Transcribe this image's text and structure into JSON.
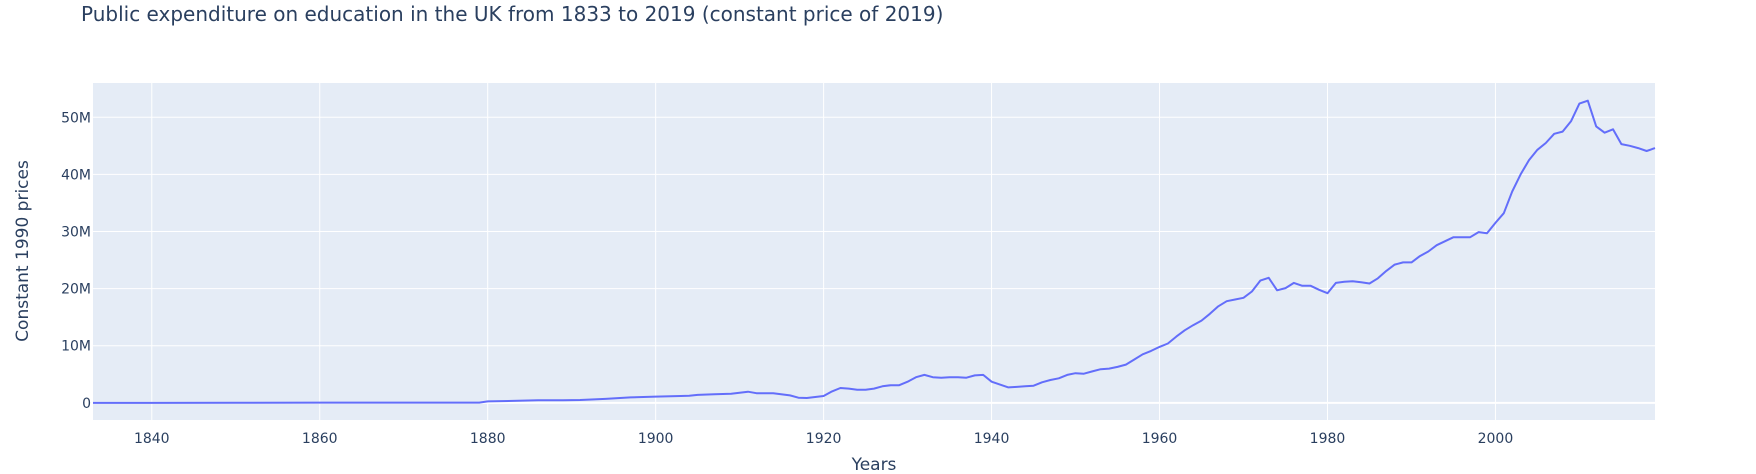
{
  "chart_data": {
    "type": "line",
    "title": "Public expenditure on education in the UK from 1833 to 2019 (constant price of 2019)",
    "xlabel": "Years",
    "ylabel": "Constant 1990  prices",
    "xlim": [
      1833,
      2019
    ],
    "ylim": [
      -3000000,
      56000000
    ],
    "grid": true,
    "x_ticks": [
      1840,
      1860,
      1880,
      1900,
      1920,
      1940,
      1960,
      1980,
      2000
    ],
    "x_tick_labels": [
      "1840",
      "1860",
      "1880",
      "1900",
      "1920",
      "1940",
      "1960",
      "1980",
      "2000"
    ],
    "y_ticks": [
      0,
      10000000,
      20000000,
      30000000,
      40000000,
      50000000
    ],
    "y_tick_labels": [
      "0",
      "10M",
      "20M",
      "30M",
      "40M",
      "50M"
    ],
    "colors": {
      "line": "#636efa",
      "plot_bg": "#e5ecf6",
      "grid": "#ffffff",
      "text": "#2a3f5f"
    },
    "series": [
      {
        "x": [
          1833,
          1840,
          1850,
          1860,
          1870,
          1879,
          1880,
          1883,
          1886,
          1889,
          1891,
          1894,
          1897,
          1900,
          1903,
          1904,
          1905,
          1907,
          1909,
          1911,
          1912,
          1914,
          1916,
          1917,
          1918,
          1920,
          1921,
          1922,
          1923,
          1924,
          1925,
          1926,
          1927,
          1928,
          1929,
          1930,
          1931,
          1932,
          1933,
          1934,
          1935,
          1936,
          1937,
          1938,
          1939,
          1940,
          1941,
          1942,
          1943,
          1944,
          1945,
          1946,
          1947,
          1948,
          1949,
          1950,
          1951,
          1952,
          1953,
          1954,
          1955,
          1956,
          1957,
          1958,
          1959,
          1960,
          1961,
          1962,
          1963,
          1964,
          1965,
          1966,
          1967,
          1968,
          1969,
          1970,
          1971,
          1972,
          1973,
          1974,
          1975,
          1976,
          1977,
          1978,
          1979,
          1980,
          1981,
          1982,
          1983,
          1984,
          1985,
          1986,
          1987,
          1988,
          1989,
          1990,
          1991,
          1992,
          1993,
          1994,
          1995,
          1996,
          1997,
          1998,
          1999,
          2000,
          2001,
          2002,
          2003,
          2004,
          2005,
          2006,
          2007,
          2008,
          2009,
          2010,
          2011,
          2012,
          2013,
          2014,
          2015,
          2016,
          2017,
          2018,
          2019
        ],
        "y": [
          0,
          0,
          20000,
          50000,
          50000,
          50000,
          250000,
          350000,
          450000,
          450000,
          500000,
          700000,
          950000,
          1100000,
          1200000,
          1250000,
          1400000,
          1500000,
          1600000,
          1950000,
          1700000,
          1700000,
          1300000,
          900000,
          850000,
          1200000,
          2000000,
          2600000,
          2500000,
          2300000,
          2300000,
          2500000,
          2900000,
          3100000,
          3100000,
          3700000,
          4500000,
          4900000,
          4500000,
          4400000,
          4500000,
          4500000,
          4400000,
          4800000,
          4900000,
          3700000,
          3200000,
          2700000,
          2800000,
          2900000,
          3000000,
          3600000,
          4000000,
          4300000,
          4900000,
          5200000,
          5100000,
          5500000,
          5900000,
          6000000,
          6300000,
          6700000,
          7600000,
          8500000,
          9100000,
          9800000,
          10400000,
          11600000,
          12700000,
          13600000,
          14400000,
          15600000,
          16900000,
          17800000,
          18100000,
          18400000,
          19500000,
          21400000,
          21900000,
          19700000,
          20100000,
          21000000,
          20500000,
          20500000,
          19800000,
          19200000,
          21000000,
          21200000,
          21300000,
          21100000,
          20900000,
          21800000,
          23100000,
          24200000,
          24600000,
          24600000,
          25700000,
          26500000,
          27600000,
          28300000,
          29000000,
          29000000,
          29000000,
          29900000,
          29700000,
          31500000,
          33200000,
          37000000,
          40000000,
          42500000,
          44300000,
          45500000,
          47100000,
          47500000,
          49300000,
          52400000,
          52900000,
          48400000,
          47300000,
          47900000,
          45300000,
          45000000,
          44600000,
          44100000,
          44600000
        ]
      }
    ]
  }
}
